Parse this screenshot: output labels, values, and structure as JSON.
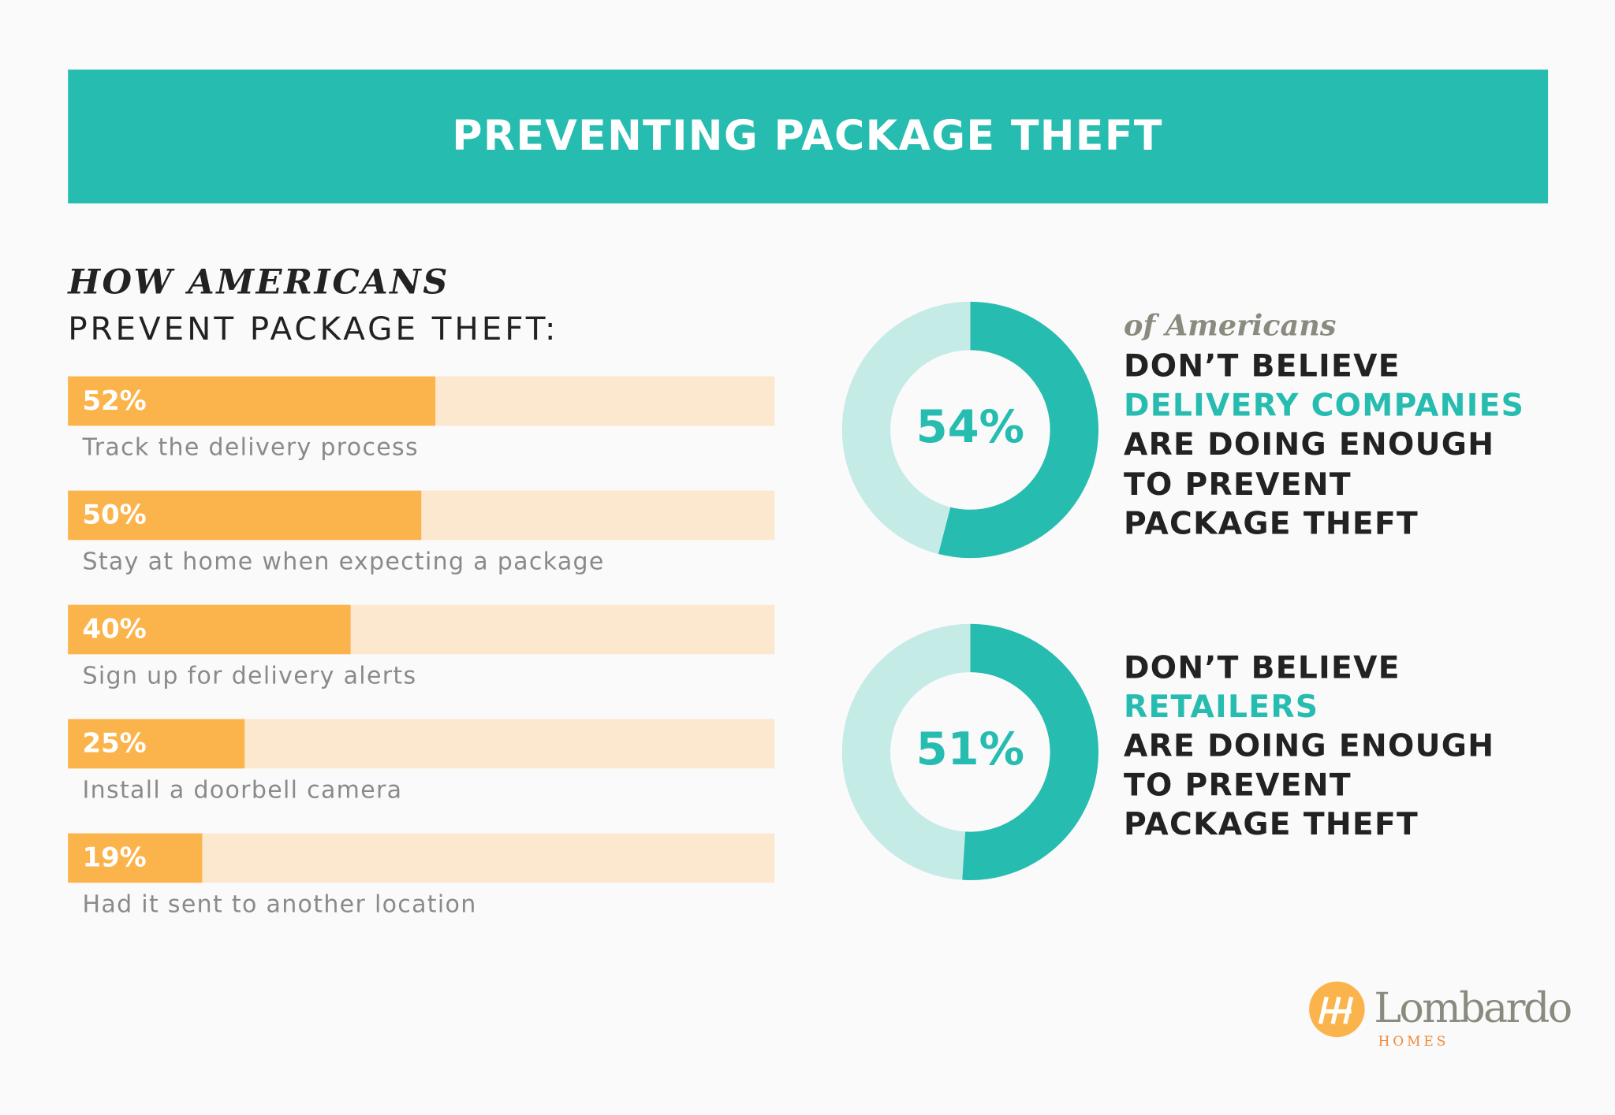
{
  "title": "PREVENTING PACKAGE THEFT",
  "chart_data": [
    {
      "type": "bar",
      "orientation": "horizontal",
      "title": "HOW AMERICANS",
      "subtitle": "PREVENT PACKAGE THEFT:",
      "categories": [
        "Track the delivery process",
        "Stay at home when expecting a package",
        "Sign up for delivery alerts",
        "Install a doorbell camera",
        "Had it sent to another location"
      ],
      "values": [
        52,
        50,
        40,
        25,
        19
      ],
      "value_labels": [
        "52%",
        "50%",
        "40%",
        "25%",
        "19%"
      ],
      "color": "#fbb44c",
      "track_color": "#fbe8cf",
      "xlim": [
        0,
        100
      ]
    },
    {
      "type": "pie",
      "donut": true,
      "values": [
        54,
        46
      ],
      "value_labels": [
        "54%"
      ],
      "colors": [
        "#27bcb0",
        "#c5ebe7"
      ],
      "annotation": [
        "of Americans",
        "DON’T BELIEVE",
        "DELIVERY COMPANIES",
        "ARE DOING ENOUGH",
        "TO PREVENT",
        "PACKAGE THEFT"
      ]
    },
    {
      "type": "pie",
      "donut": true,
      "values": [
        51,
        49
      ],
      "value_labels": [
        "51%"
      ],
      "colors": [
        "#27bcb0",
        "#c5ebe7"
      ],
      "annotation": [
        "DON’T BELIEVE",
        "RETAILERS",
        "ARE DOING ENOUGH",
        "TO PREVENT",
        "PACKAGE THEFT"
      ]
    }
  ],
  "logo": {
    "name": "Lombardo",
    "tagline": "HOMES"
  }
}
